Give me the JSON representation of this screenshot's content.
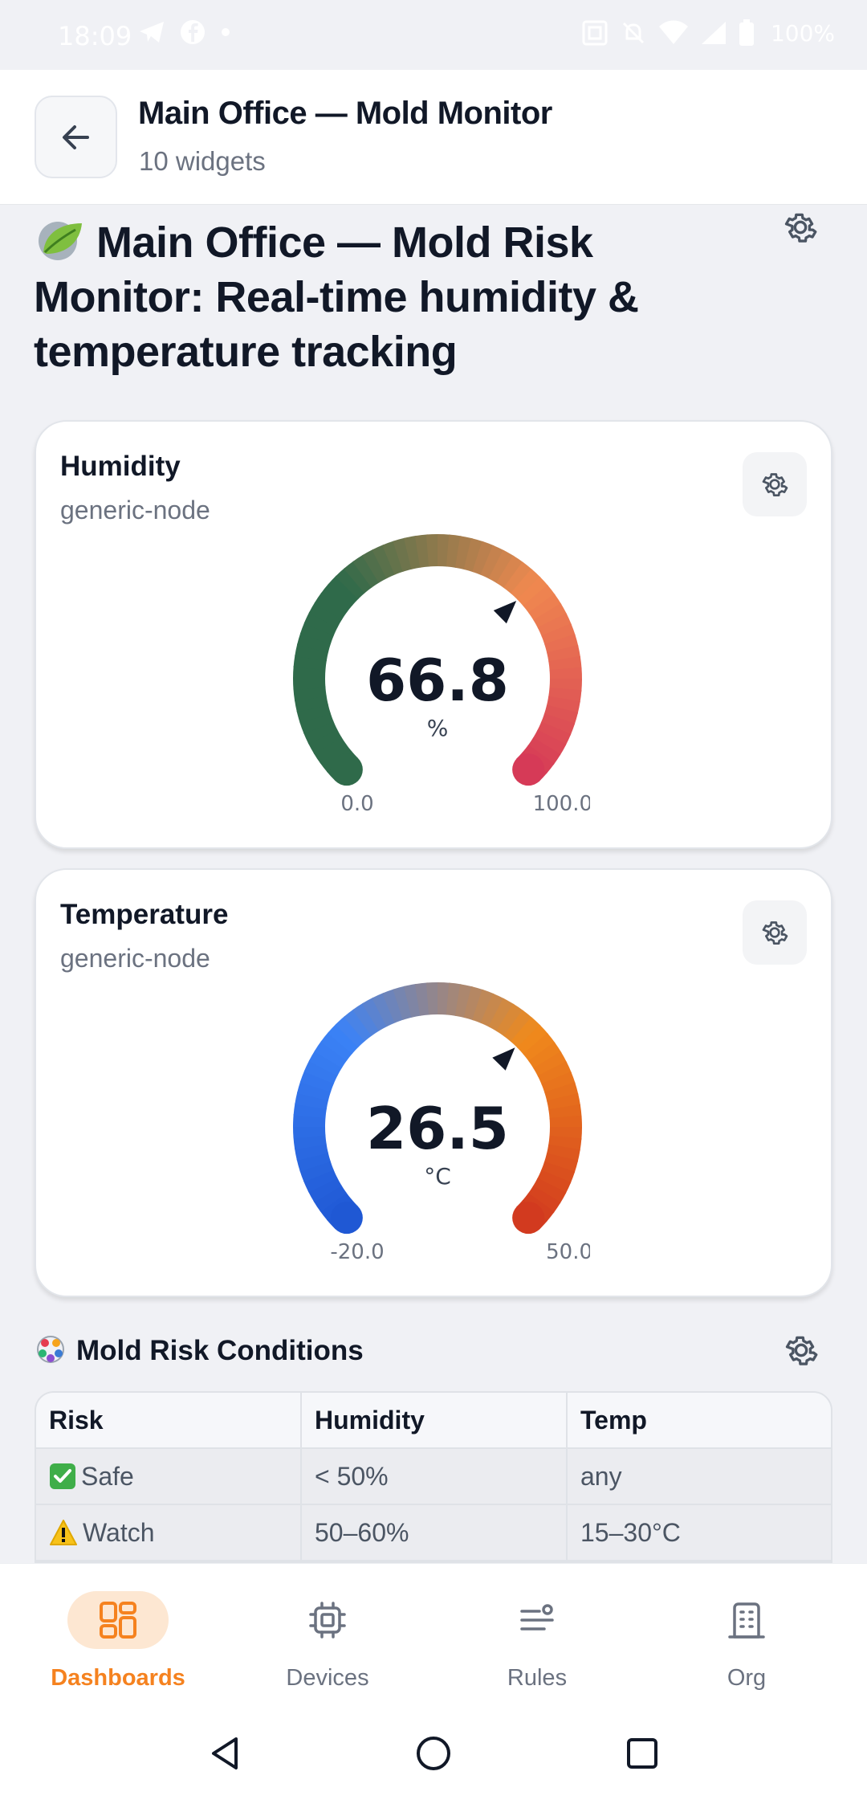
{
  "status_bar": {
    "time": "18:09",
    "battery": "100%",
    "icons": [
      "telegram-icon",
      "facebook-icon",
      "dot-icon",
      "nfc-icon",
      "mute-icon",
      "wifi-icon",
      "signal-icon",
      "battery-icon"
    ]
  },
  "header": {
    "title": "Main Office — Mold Monitor",
    "subtitle": "10 widgets"
  },
  "page": {
    "title": "Main Office — Mold Risk Monitor: Real-time humidity & temperature tracking"
  },
  "widgets": [
    {
      "title": "Humidity",
      "source": "generic-node",
      "value": "66.8",
      "unit": "%",
      "min_label": "0.0",
      "max_label": "100.0",
      "min": 0,
      "max": 100,
      "reading": 66.8,
      "colors": [
        "#2f6a4a",
        "#2f6a4a",
        "#f0894f",
        "#d63a57"
      ]
    },
    {
      "title": "Temperature",
      "source": "generic-node",
      "value": "26.5",
      "unit": "°C",
      "min_label": "-20.0",
      "max_label": "50.0",
      "min": -20,
      "max": 50,
      "reading": 26.5,
      "colors": [
        "#1f58d4",
        "#3b82f6",
        "#f08a1c",
        "#d23a1f"
      ]
    }
  ],
  "risk_section": {
    "title": "Mold Risk Conditions",
    "columns": [
      "Risk",
      "Humidity",
      "Temp"
    ],
    "rows": [
      {
        "risk_icon": "check-mark-icon",
        "risk": "Safe",
        "humidity": "< 50%",
        "temp": "any"
      },
      {
        "risk_icon": "warning-icon",
        "risk": "Watch",
        "humidity": "50–60%",
        "temp": "15–30°C"
      }
    ]
  },
  "bottom_nav": [
    {
      "label": "Dashboards",
      "icon": "dashboard-icon",
      "active": true
    },
    {
      "label": "Devices",
      "icon": "chip-icon",
      "active": false
    },
    {
      "label": "Rules",
      "icon": "rules-icon",
      "active": false
    },
    {
      "label": "Org",
      "icon": "building-icon",
      "active": false
    }
  ],
  "accent_color": "#f5821f"
}
